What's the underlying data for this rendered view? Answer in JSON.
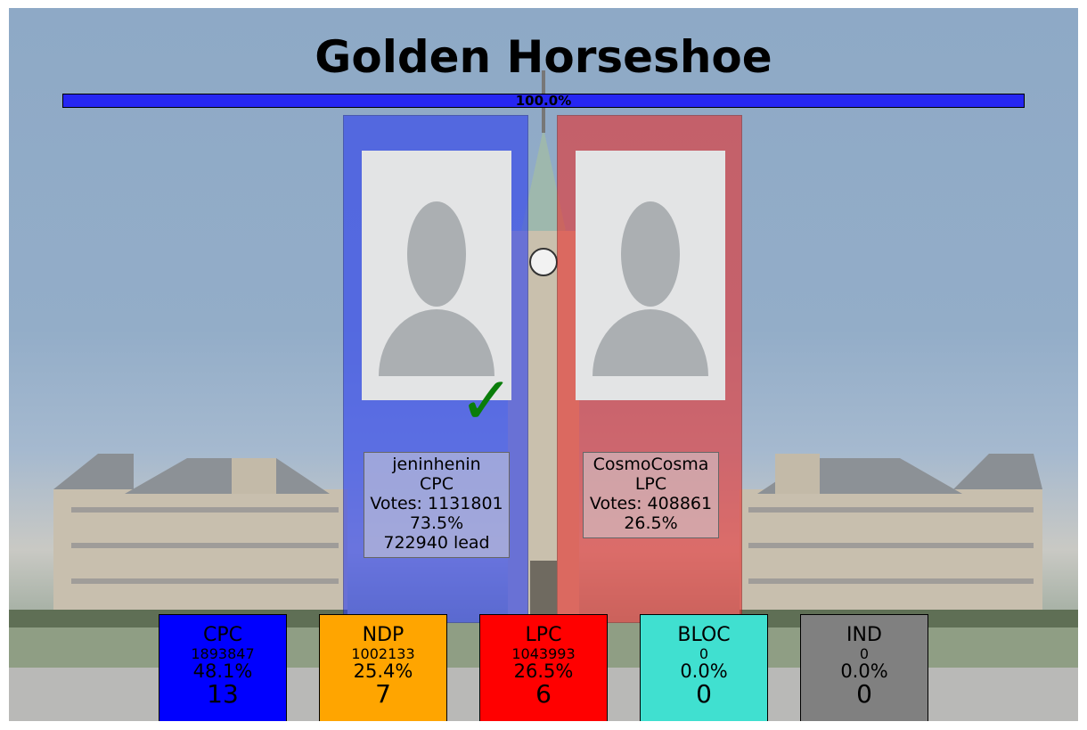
{
  "race": {
    "title": "Golden Horseshoe",
    "reporting_label": "100.0%",
    "reporting_fraction": 1.0
  },
  "candidates": [
    {
      "name": "jeninhenin",
      "party": "CPC",
      "votes_label": "Votes: 1131801",
      "pct_label": "73.5%",
      "lead_label": "722940 lead",
      "winner": true,
      "panel_color": "#2b3df0"
    },
    {
      "name": "CosmoCosma",
      "party": "LPC",
      "votes_label": "Votes: 408861",
      "pct_label": "26.5%",
      "lead_label": "",
      "winner": false,
      "panel_color": "#e8302e"
    }
  ],
  "winner_mark": "✓",
  "parties": [
    {
      "name": "CPC",
      "votes": "1893847",
      "pct": "48.1%",
      "seats": "13",
      "color": "#0000ff"
    },
    {
      "name": "NDP",
      "votes": "1002133",
      "pct": "25.4%",
      "seats": "7",
      "color": "#ffa500"
    },
    {
      "name": "LPC",
      "votes": "1043993",
      "pct": "26.5%",
      "seats": "6",
      "color": "#ff0000"
    },
    {
      "name": "BLOC",
      "votes": "0",
      "pct": "0.0%",
      "seats": "0",
      "color": "#40e0d0"
    },
    {
      "name": "IND",
      "votes": "0",
      "pct": "0.0%",
      "seats": "0",
      "color": "#808080"
    }
  ]
}
